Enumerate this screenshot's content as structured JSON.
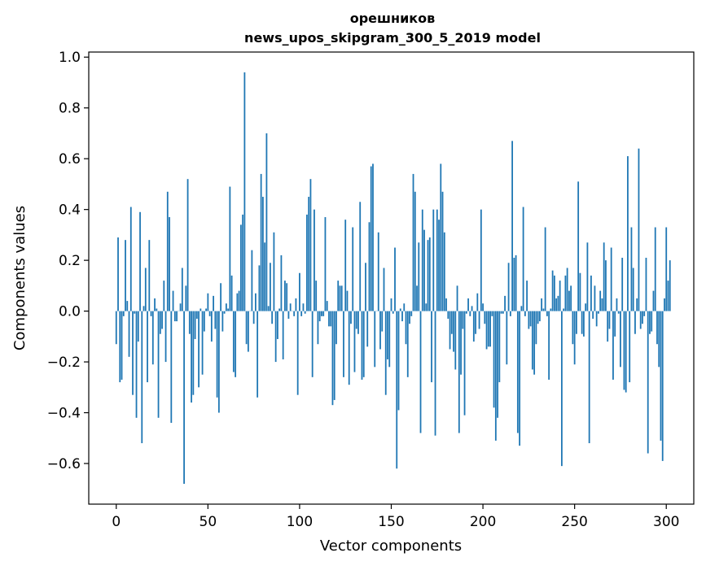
{
  "chart_data": {
    "type": "bar",
    "title": "орешников",
    "subtitle": "news_upos_skipgram_300_5_2019 model",
    "xlabel": "Vector components",
    "ylabel": "Components values",
    "xlim": [
      -15,
      315
    ],
    "ylim": [
      -0.76,
      1.02
    ],
    "xticks": [
      0,
      50,
      100,
      150,
      200,
      250,
      300
    ],
    "yticks": [
      -0.6,
      -0.4,
      -0.2,
      0.0,
      0.2,
      0.4,
      0.6,
      0.8,
      1.0
    ],
    "xtick_labels": [
      "0",
      "50",
      "100",
      "150",
      "200",
      "250",
      "300"
    ],
    "ytick_labels": [
      "−0.6",
      "−0.4",
      "−0.2",
      "0.0",
      "0.2",
      "0.4",
      "0.6",
      "0.8",
      "1.0"
    ],
    "grid": false,
    "bar_color": "#1f77b4",
    "values": [
      -0.13,
      0.29,
      -0.28,
      -0.27,
      -0.02,
      0.28,
      0.04,
      -0.18,
      0.41,
      -0.33,
      -0.01,
      -0.42,
      -0.12,
      0.39,
      -0.52,
      0.02,
      0.17,
      -0.28,
      0.28,
      -0.02,
      -0.21,
      0.05,
      0.01,
      -0.42,
      -0.09,
      -0.07,
      0.12,
      -0.2,
      0.47,
      0.37,
      -0.44,
      0.08,
      -0.04,
      -0.04,
      0.0,
      0.03,
      0.17,
      -0.68,
      0.1,
      0.52,
      -0.09,
      -0.36,
      -0.33,
      -0.11,
      -0.03,
      -0.3,
      0.01,
      -0.25,
      -0.08,
      0.01,
      0.07,
      -0.02,
      -0.12,
      0.06,
      -0.07,
      -0.34,
      -0.4,
      0.11,
      -0.08,
      -0.01,
      0.03,
      0.01,
      0.49,
      0.14,
      -0.24,
      -0.26,
      0.07,
      0.08,
      0.34,
      0.38,
      0.94,
      -0.13,
      -0.16,
      0.0,
      0.24,
      -0.05,
      0.07,
      -0.34,
      0.18,
      0.54,
      0.45,
      0.27,
      0.7,
      0.02,
      0.19,
      -0.05,
      0.31,
      -0.2,
      -0.11,
      0.01,
      0.22,
      -0.19,
      0.12,
      0.11,
      -0.03,
      0.03,
      0.0,
      -0.02,
      0.05,
      -0.33,
      0.15,
      -0.02,
      0.03,
      -0.01,
      0.38,
      0.45,
      0.52,
      -0.26,
      0.4,
      0.12,
      -0.13,
      -0.04,
      -0.02,
      -0.02,
      0.37,
      0.04,
      -0.06,
      -0.06,
      -0.37,
      -0.35,
      -0.13,
      0.12,
      0.1,
      0.1,
      -0.26,
      0.36,
      0.08,
      -0.29,
      -0.05,
      0.33,
      -0.24,
      -0.07,
      -0.09,
      0.43,
      -0.27,
      -0.26,
      0.19,
      -0.14,
      0.35,
      0.57,
      0.58,
      -0.22,
      0.0,
      0.31,
      -0.15,
      -0.08,
      0.17,
      -0.33,
      -0.19,
      -0.22,
      0.05,
      -0.01,
      0.25,
      -0.62,
      -0.39,
      0.01,
      -0.04,
      0.03,
      -0.13,
      -0.26,
      -0.05,
      -0.02,
      0.54,
      0.47,
      0.1,
      0.27,
      -0.48,
      0.4,
      0.32,
      0.03,
      0.28,
      0.29,
      -0.28,
      0.4,
      -0.49,
      0.4,
      0.36,
      0.58,
      0.47,
      0.31,
      0.05,
      -0.03,
      -0.15,
      -0.09,
      -0.16,
      -0.23,
      0.1,
      -0.48,
      -0.25,
      -0.07,
      -0.41,
      -0.01,
      0.05,
      -0.02,
      0.02,
      -0.12,
      -0.09,
      0.07,
      -0.07,
      0.4,
      0.03,
      -0.05,
      -0.15,
      -0.14,
      -0.14,
      -0.02,
      -0.38,
      -0.51,
      -0.42,
      -0.28,
      -0.01,
      -0.01,
      0.06,
      -0.21,
      0.19,
      -0.02,
      0.67,
      0.21,
      0.22,
      -0.48,
      -0.53,
      0.02,
      0.41,
      -0.02,
      0.12,
      -0.07,
      -0.06,
      -0.23,
      -0.25,
      -0.13,
      -0.05,
      -0.04,
      0.05,
      0.01,
      0.33,
      -0.02,
      -0.27,
      0.01,
      0.16,
      0.14,
      0.05,
      0.06,
      0.12,
      -0.61,
      0.01,
      0.14,
      0.17,
      0.08,
      0.1,
      -0.13,
      -0.21,
      -0.09,
      0.51,
      0.15,
      -0.09,
      -0.1,
      0.03,
      0.27,
      -0.52,
      0.14,
      -0.03,
      0.1,
      -0.06,
      -0.01,
      0.08,
      0.05,
      0.27,
      0.2,
      -0.12,
      -0.07,
      0.25,
      -0.27,
      -0.1,
      0.05,
      -0.01,
      -0.22,
      0.21,
      -0.31,
      -0.32,
      0.61,
      -0.28,
      0.33,
      0.17,
      -0.09,
      0.05,
      0.64,
      -0.07,
      -0.05,
      -0.02,
      0.21,
      -0.56,
      -0.09,
      -0.08,
      0.08,
      0.33,
      -0.13,
      -0.22,
      -0.51,
      -0.59,
      0.05,
      0.33,
      0.12,
      0.2
    ]
  }
}
